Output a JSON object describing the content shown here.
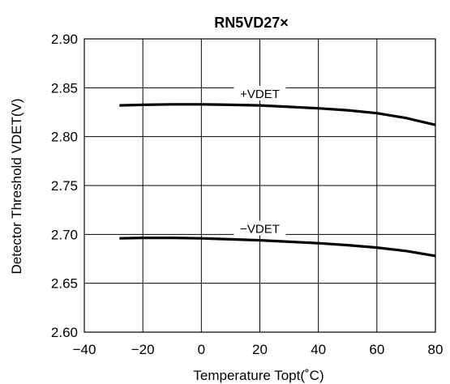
{
  "chart_data": {
    "type": "line",
    "title": "RN5VD27×",
    "xlabel": "Temperature Topt(˚C)",
    "ylabel": "Detector Threshold VDET(V)",
    "xlim": [
      -40,
      80
    ],
    "ylim": [
      2.6,
      2.9
    ],
    "xticks": [
      -40,
      -20,
      0,
      20,
      40,
      60,
      80
    ],
    "xtick_labels": [
      "−40",
      "−20",
      "0",
      "20",
      "40",
      "60",
      "80"
    ],
    "yticks": [
      2.6,
      2.65,
      2.7,
      2.75,
      2.8,
      2.85,
      2.9
    ],
    "ytick_labels": [
      "2.60",
      "2.65",
      "2.70",
      "2.75",
      "2.80",
      "2.85",
      "2.90"
    ],
    "grid": true,
    "series": [
      {
        "name": "+VDET",
        "x": [
          -28,
          -20,
          -10,
          0,
          10,
          20,
          30,
          40,
          50,
          60,
          70,
          80
        ],
        "y": [
          2.832,
          2.8325,
          2.833,
          2.833,
          2.8325,
          2.832,
          2.8305,
          2.829,
          2.827,
          2.824,
          2.819,
          2.812
        ]
      },
      {
        "name": "−VDET",
        "x": [
          -28,
          -20,
          -10,
          0,
          10,
          20,
          30,
          40,
          50,
          60,
          70,
          80
        ],
        "y": [
          2.696,
          2.6965,
          2.6965,
          2.696,
          2.695,
          2.694,
          2.6925,
          2.691,
          2.689,
          2.6865,
          2.683,
          2.678
        ]
      }
    ]
  }
}
